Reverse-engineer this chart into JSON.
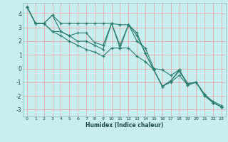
{
  "xlabel": "Humidex (Indice chaleur)",
  "bg_color": "#c8eef0",
  "line_color": "#2d7d70",
  "grid_color": "#ffffff",
  "xlim": [
    -0.5,
    23.5
  ],
  "ylim": [
    -3.5,
    4.8
  ],
  "xticks": [
    0,
    1,
    2,
    3,
    4,
    5,
    6,
    7,
    8,
    9,
    10,
    11,
    12,
    13,
    14,
    15,
    16,
    17,
    18,
    19,
    20,
    21,
    22,
    23
  ],
  "yticks": [
    -3,
    -2,
    -1,
    0,
    1,
    2,
    3,
    4
  ],
  "series": [
    [
      4.5,
      3.3,
      3.3,
      3.9,
      2.7,
      2.4,
      2.6,
      2.6,
      1.9,
      1.7,
      3.3,
      1.7,
      3.2,
      2.6,
      1.1,
      -0.1,
      -1.3,
      -0.9,
      -0.1,
      -1.1,
      -1.0,
      -1.9,
      -2.4,
      -2.7
    ],
    [
      4.5,
      3.3,
      3.3,
      2.7,
      2.7,
      2.4,
      2.0,
      2.0,
      1.7,
      1.4,
      3.3,
      1.5,
      3.2,
      2.4,
      1.1,
      -0.1,
      -1.3,
      -0.9,
      -0.2,
      -1.1,
      -1.0,
      -1.9,
      -2.5,
      -2.8
    ],
    [
      4.5,
      3.3,
      3.3,
      3.9,
      3.3,
      3.3,
      3.3,
      3.3,
      3.3,
      3.3,
      3.3,
      3.2,
      3.2,
      2.0,
      1.5,
      0.0,
      -0.1,
      -0.5,
      -0.1,
      -1.2,
      -1.0,
      -2.0,
      -2.5,
      -2.8
    ],
    [
      4.5,
      3.3,
      3.3,
      2.7,
      2.4,
      2.0,
      1.7,
      1.4,
      1.2,
      0.9,
      1.5,
      1.5,
      1.5,
      0.9,
      0.5,
      -0.1,
      -1.3,
      -1.0,
      -0.5,
      -1.2,
      -1.0,
      -1.9,
      -2.5,
      -2.8
    ]
  ]
}
